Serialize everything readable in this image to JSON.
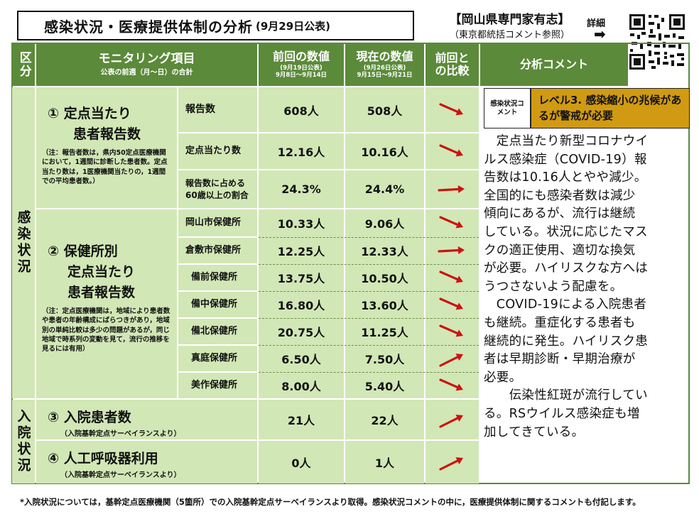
{
  "header": {
    "title": "感染状況・医療提供体制の分析",
    "date": "(9月29日公表)",
    "org": "【岡山県専門家有志】",
    "org_sub": "（東京都統括コメント参照）",
    "detail_label": "詳細",
    "detail_arrow": "➡"
  },
  "table_header": {
    "category": "区分",
    "item": "モニタリング項目",
    "item_sub": "公表の前週（月～日）の合計",
    "prev": "前回の数値",
    "prev_sub1": "(9月19日公表)",
    "prev_sub2": "9月8日～9月14日",
    "curr": "現在の数値",
    "curr_sub1": "(9月26日公表)",
    "curr_sub2": "9月15日～9月21日",
    "compare": "前回との比較",
    "comment": "分析コメント"
  },
  "sections": {
    "infection": "感染状況",
    "hospital": "入院状況"
  },
  "groups": {
    "g1_title": "① 定点当たり",
    "g1_title2": "患者報告数",
    "g1_note": "（注：報告者数は，県内50定点医療機関において，1週間に診断した患者数。定点当たり数は，1医療機関当たりの，1週間での平均患者数。）",
    "g2_title": "② 保健所別",
    "g2_title2": "定点当たり",
    "g2_title3": "患者報告数",
    "g2_note": "（注：定点医療機関は，地域により患者数や患者の年齢構成にばらつきがあり，地域別の単純比較は多少の問題があるが，同じ地域で時系列の変動を見て，流行の推移を見るには有用）",
    "g3_title": "③ 入院患者数",
    "g3_note": "（入院基幹定点サーベイランスより）",
    "g4_title": "④ 人工呼吸器利用",
    "g4_note": "（入院基幹定点サーベイランスより）"
  },
  "rows": [
    {
      "label": "報告数",
      "prev": "608人",
      "curr": "508人",
      "trend": "down"
    },
    {
      "label": "定点当たり数",
      "prev": "12.16人",
      "curr": "10.16人",
      "trend": "down"
    },
    {
      "label": "報告数に占める60歳以上の割合",
      "prev": "24.3%",
      "curr": "24.4%",
      "trend": "flat"
    },
    {
      "label": "岡山市保健所",
      "prev": "10.33人",
      "curr": "9.06人",
      "trend": "down"
    },
    {
      "label": "倉敷市保健所",
      "prev": "12.25人",
      "curr": "12.33人",
      "trend": "flat"
    },
    {
      "label": "備前保健所",
      "prev": "13.75人",
      "curr": "10.50人",
      "trend": "down"
    },
    {
      "label": "備中保健所",
      "prev": "16.80人",
      "curr": "13.60人",
      "trend": "down"
    },
    {
      "label": "備北保健所",
      "prev": "20.75人",
      "curr": "11.25人",
      "trend": "down"
    },
    {
      "label": "真庭保健所",
      "prev": "6.50人",
      "curr": "7.50人",
      "trend": "up"
    },
    {
      "label": "美作保健所",
      "prev": "8.00人",
      "curr": "5.40人",
      "trend": "down"
    },
    {
      "label": "",
      "prev": "21人",
      "curr": "22人",
      "trend": "up"
    },
    {
      "label": "",
      "prev": "0人",
      "curr": "1人",
      "trend": "up"
    }
  ],
  "level": {
    "label": "感染状況コメント",
    "text": "レベル3. 感染縮小の兆候があるが警戒が必要",
    "color": "#d09a12"
  },
  "comment_lines": [
    "　定点当たり新型コロナウイ",
    "ルス感染症（COVID-19）報",
    "告数は10.16人とやや減少。",
    "全国的にも感染者数は減少",
    "傾向にあるが、流行は継続",
    "している。状況に応じたマス",
    "クの適正使用、適切な換気",
    "が必要。ハイリスクな方へは",
    "うつさないよう配慮を。",
    "　COVID-19による入院患者",
    "も継続。重症化する患者も",
    "継続的に発生。ハイリスク患",
    "者は早期診断・早期治療が",
    "必要。",
    "　　伝染性紅斑が流行してい",
    "る。RSウイルス感染症も増",
    "加してきている。"
  ],
  "footnote": "*入院状況については，基幹定点医療機関（5箇所）での入院基幹定点サーベイランスより取得。感染状況コメントの中に，医療提供体制に関するコメントも付記します。",
  "colors": {
    "header_green": "#5b8a3a",
    "light_green": "#d2e7b6",
    "arrow_red": "#cc1212",
    "level_orange": "#d09a12"
  }
}
